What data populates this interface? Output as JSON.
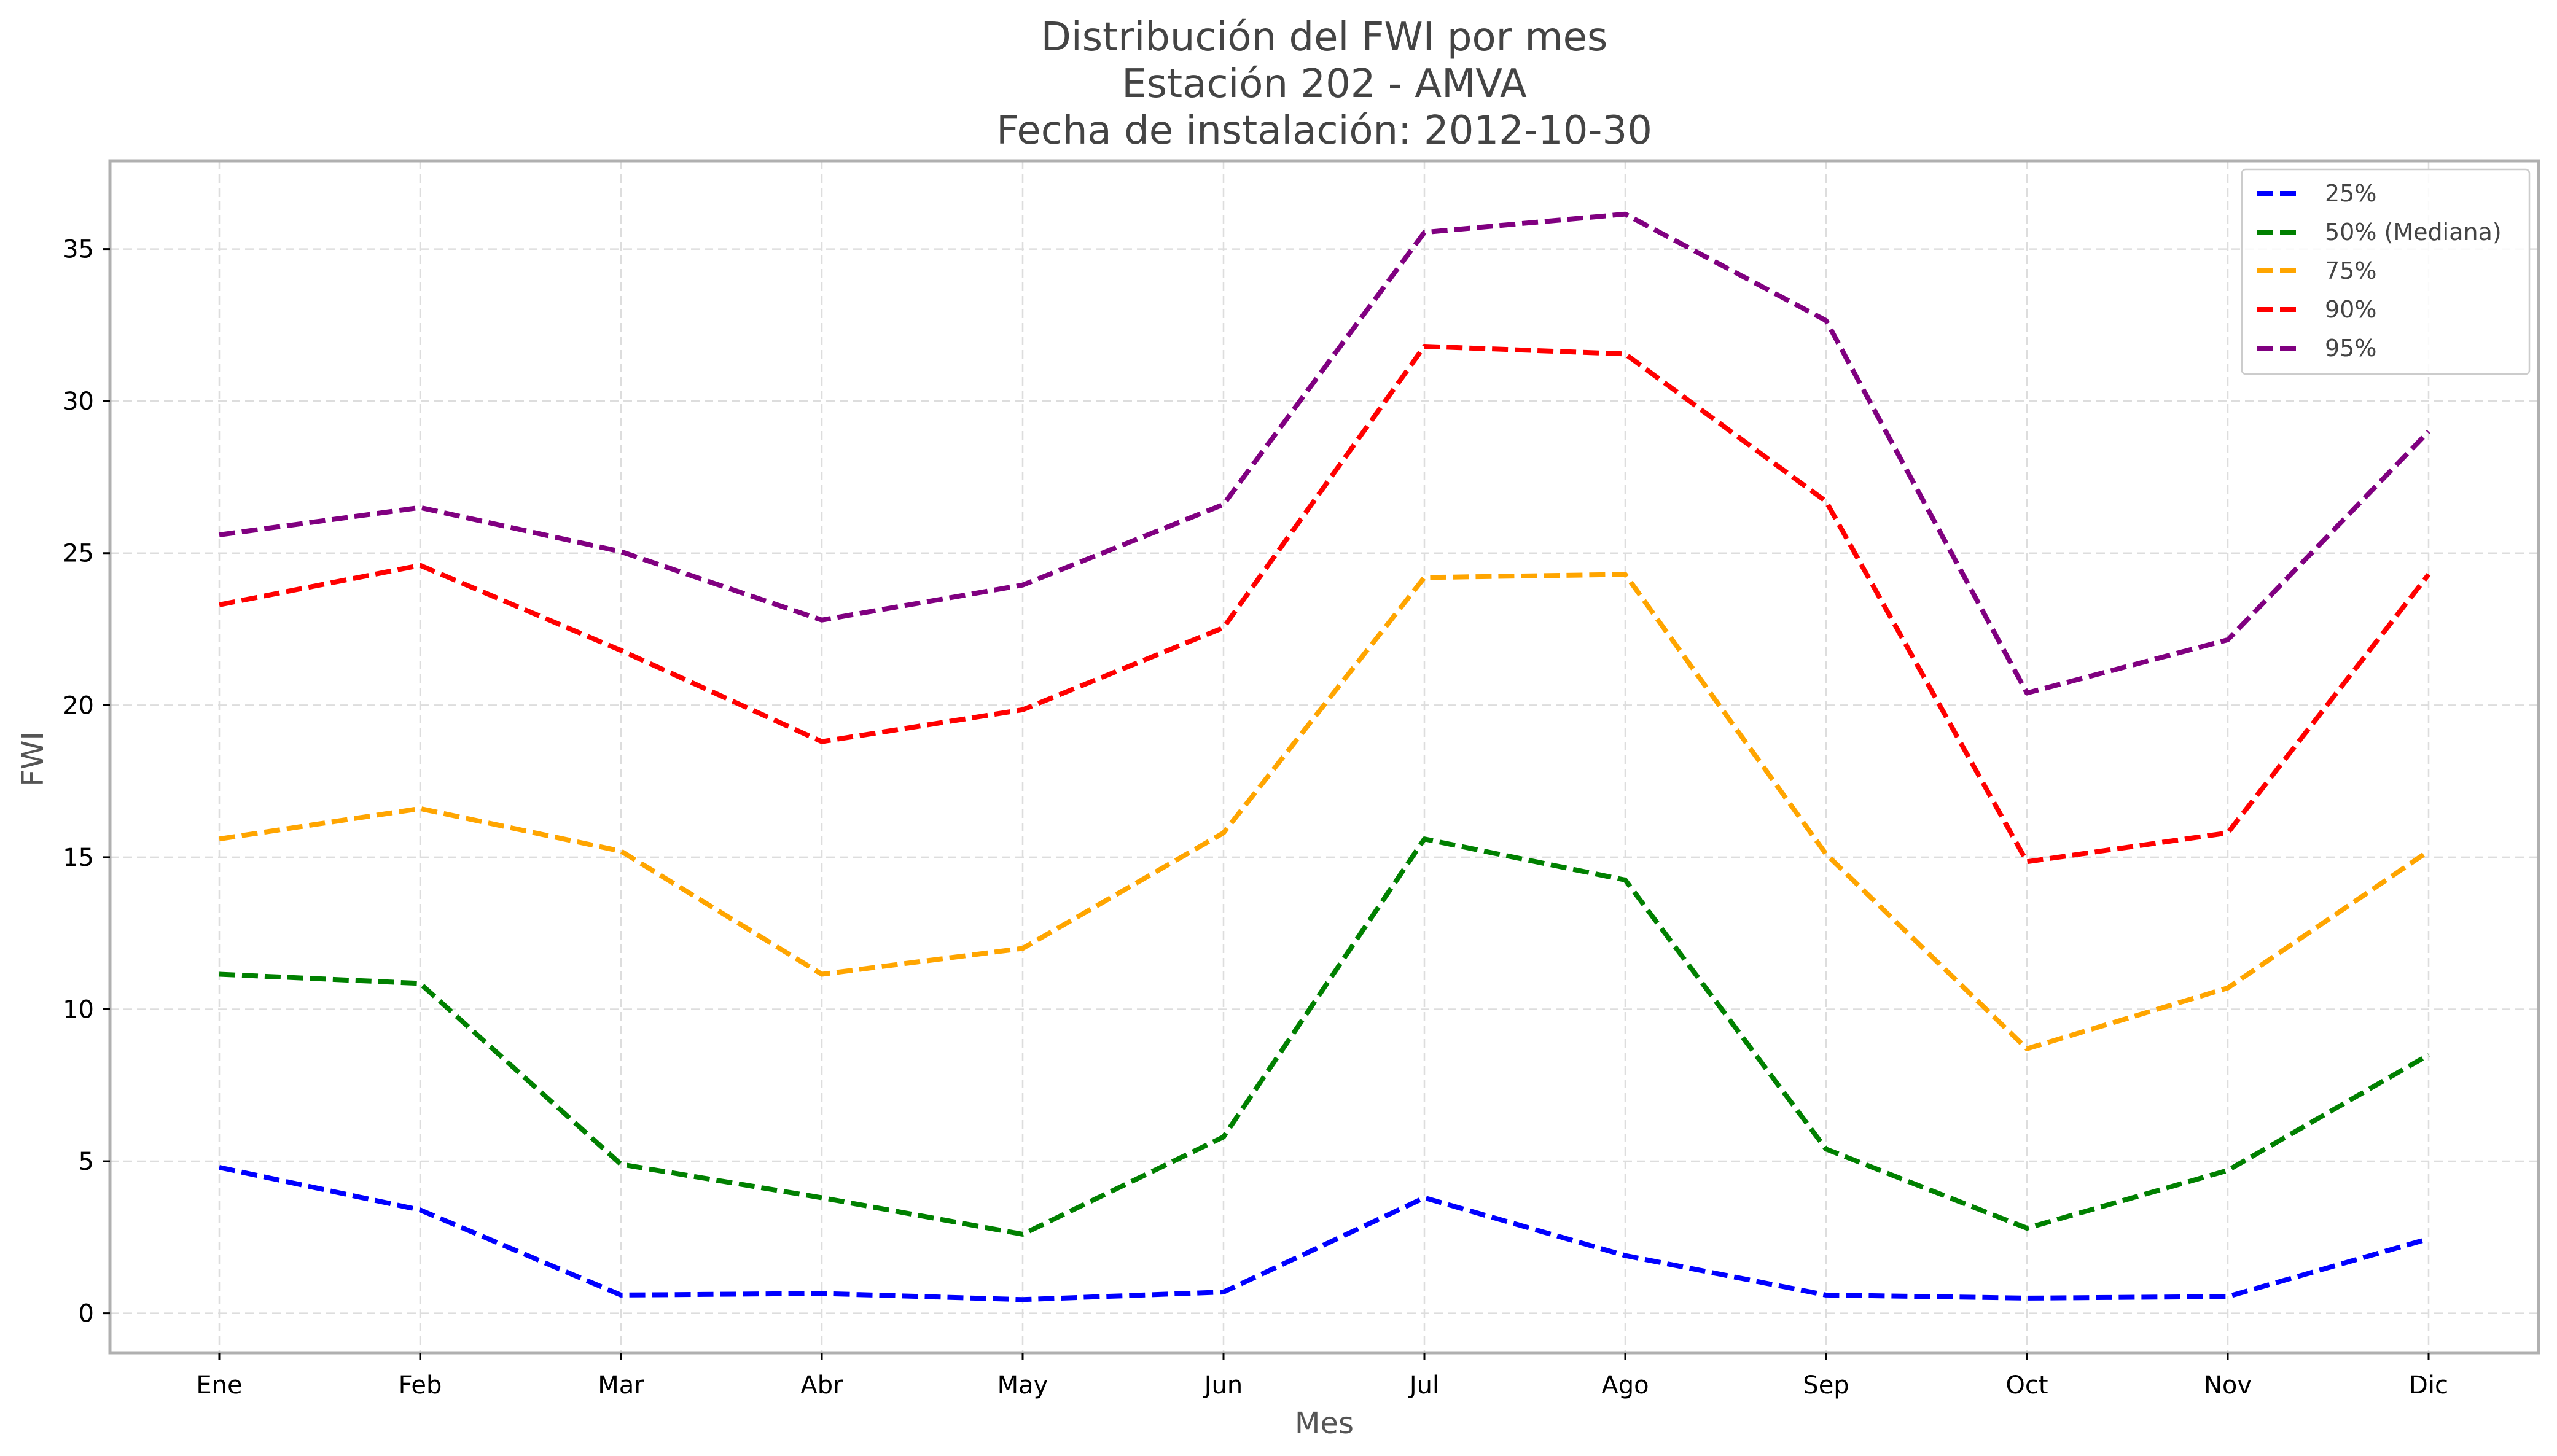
{
  "chart_data": {
    "type": "line",
    "title": [
      "Distribución del FWI por mes",
      "Estación 202 - AMVA",
      "Fecha de instalación: 2012-10-30"
    ],
    "xlabel": "Mes",
    "ylabel": "FWI",
    "categories": [
      "Ene",
      "Feb",
      "Mar",
      "Abr",
      "May",
      "Jun",
      "Jul",
      "Ago",
      "Sep",
      "Oct",
      "Nov",
      "Dic"
    ],
    "ylim": [
      -1.3,
      37.9
    ],
    "yticks": [
      0,
      5,
      10,
      15,
      20,
      25,
      30,
      35
    ],
    "grid": true,
    "legend_position": "top-right",
    "series": [
      {
        "name": "25%",
        "color": "#0000ff",
        "values": [
          4.8,
          3.4,
          0.6,
          0.65,
          0.45,
          0.7,
          3.8,
          1.9,
          0.6,
          0.5,
          0.55,
          2.45
        ]
      },
      {
        "name": "50% (Mediana)",
        "color": "#008000",
        "values": [
          11.15,
          10.85,
          4.9,
          3.8,
          2.6,
          5.8,
          15.6,
          14.25,
          5.4,
          2.8,
          4.7,
          8.5
        ]
      },
      {
        "name": "75%",
        "color": "#ffa500",
        "values": [
          15.6,
          16.6,
          15.2,
          11.15,
          12.0,
          15.8,
          24.2,
          24.3,
          15.1,
          8.7,
          10.7,
          15.2
        ]
      },
      {
        "name": "90%",
        "color": "#ff0000",
        "values": [
          23.3,
          24.6,
          21.8,
          18.8,
          19.85,
          22.55,
          31.8,
          31.55,
          26.7,
          14.85,
          15.8,
          24.3
        ]
      },
      {
        "name": "95%",
        "color": "#800080",
        "values": [
          25.6,
          26.5,
          25.05,
          22.8,
          23.95,
          26.6,
          35.55,
          36.15,
          32.65,
          20.4,
          22.15,
          29.0
        ]
      }
    ]
  }
}
